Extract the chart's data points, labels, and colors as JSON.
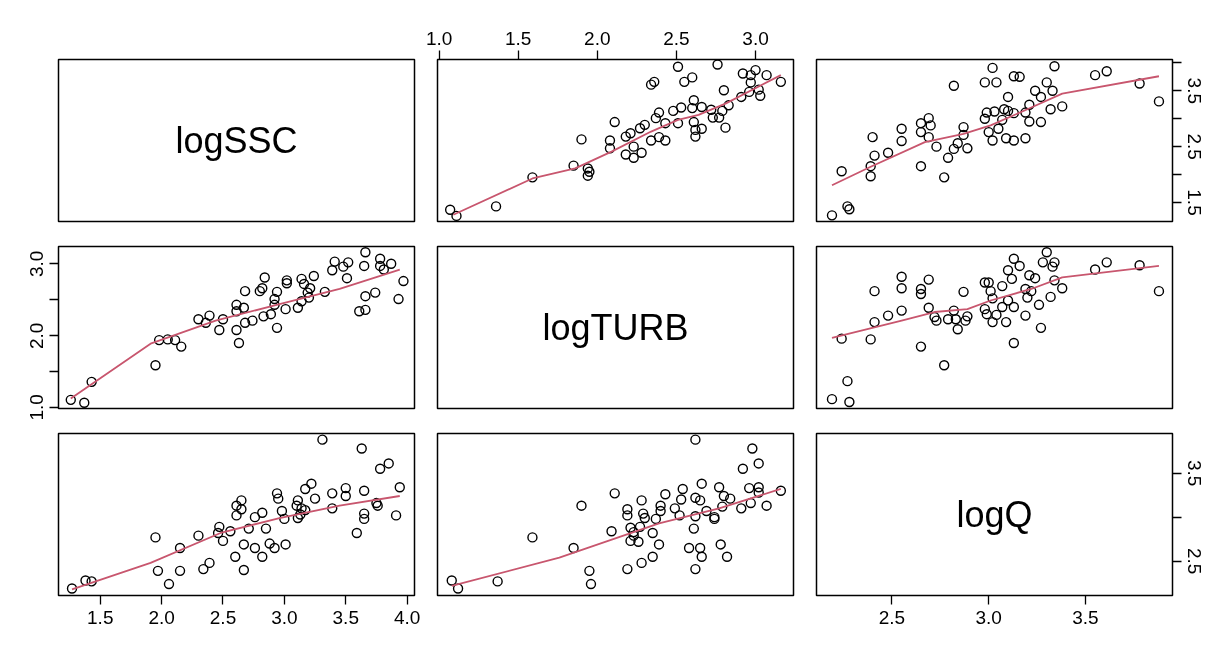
{
  "chart_data": [
    {
      "type": "other",
      "title": "logSSC"
    },
    {
      "type": "scatter",
      "xlim": [
        0.99,
        3.24
      ],
      "ylim": [
        1.16,
        4.06
      ],
      "tick_labels": "x",
      "xticks": [
        {
          "value": 1,
          "label": "1.0"
        },
        1.5,
        {
          "value": 2,
          "label": "2.0"
        },
        2.5,
        {
          "value": 3,
          "label": "3.0"
        }
      ],
      "series": [
        {
          "type": "scatter",
          "marker": "circle",
          "color": "#000000",
          "x": [
            1.07,
            1.11,
            1.36,
            1.59,
            1.85,
            1.9,
            1.94,
            1.95,
            1.94,
            2.08,
            2.08,
            2.11,
            2.18,
            2.18,
            2.21,
            2.23,
            2.23,
            2.27,
            2.28,
            2.3,
            2.34,
            2.34,
            2.36,
            2.37,
            2.39,
            2.39,
            2.43,
            2.43,
            2.48,
            2.51,
            2.51,
            2.53,
            2.55,
            2.6,
            2.61,
            2.6,
            2.61,
            2.62,
            2.62,
            2.66,
            2.66,
            2.72,
            2.73,
            2.76,
            2.77,
            2.79,
            2.8,
            2.81,
            2.83,
            2.91,
            2.92,
            2.97,
            2.97,
            3.0,
            3.02,
            3.03,
            3.07,
            3.16,
            2.96
          ],
          "values": [
            1.37,
            1.26,
            1.43,
            1.95,
            2.16,
            2.63,
            2.11,
            2.05,
            1.98,
            2.61,
            2.47,
            2.94,
            2.68,
            2.36,
            2.74,
            2.3,
            2.5,
            2.83,
            2.39,
            2.89,
            2.61,
            3.61,
            3.66,
            3.01,
            3.11,
            2.67,
            2.61,
            2.92,
            3.14,
            3.93,
            2.92,
            3.2,
            3.66,
            3.74,
            3.33,
            3.19,
            2.94,
            2.8,
            2.68,
            2.82,
            3.21,
            3.16,
            3.02,
            3.97,
            3.02,
            3.14,
            3.51,
            2.84,
            3.24,
            3.39,
            3.81,
            3.78,
            3.65,
            3.87,
            3.52,
            3.41,
            3.78,
            3.66,
            3.48
          ]
        },
        {
          "type": "line",
          "color": "#c8566e",
          "x": [
            1.09,
            1.59,
            1.86,
            2.09,
            2.34,
            2.51,
            2.64,
            2.81,
            3.16
          ],
          "values": [
            1.28,
            1.93,
            2.11,
            2.41,
            2.77,
            2.98,
            3.07,
            3.27,
            3.78
          ]
        }
      ]
    },
    {
      "type": "scatter",
      "xlim": [
        2.11,
        3.95
      ],
      "ylim": [
        1.16,
        4.06
      ],
      "tick_labels": "y",
      "yticks": [
        1.5,
        {
          "value": 2,
          "label": null
        },
        2.5,
        {
          "value": 3,
          "label": null
        },
        3.5,
        {
          "value": 4,
          "label": null
        }
      ],
      "series": [
        {
          "type": "scatter",
          "marker": "circle",
          "color": "#000000",
          "x": [
            2.19,
            2.27,
            2.28,
            2.24,
            2.39,
            2.39,
            2.4,
            2.41,
            2.48,
            2.55,
            2.55,
            2.65,
            2.65,
            2.65,
            2.69,
            2.69,
            2.7,
            2.73,
            2.77,
            2.79,
            2.82,
            2.82,
            2.84,
            2.87,
            2.87,
            2.89,
            2.98,
            2.98,
            2.99,
            3.0,
            3.02,
            3.02,
            3.03,
            3.04,
            3.05,
            3.07,
            3.08,
            3.09,
            3.1,
            3.1,
            3.13,
            3.13,
            3.13,
            3.16,
            3.19,
            3.19,
            3.21,
            3.21,
            3.24,
            3.27,
            3.27,
            3.3,
            3.32,
            3.33,
            3.34,
            3.38,
            3.55,
            3.61,
            3.78,
            3.88
          ],
          "values": [
            1.27,
            1.43,
            1.38,
            2.06,
            2.15,
            1.97,
            2.67,
            2.34,
            2.39,
            2.82,
            2.6,
            2.92,
            2.76,
            2.15,
            3.01,
            2.67,
            2.88,
            2.5,
            1.95,
            2.3,
            3.59,
            2.46,
            2.56,
            2.85,
            2.71,
            2.47,
            3.65,
            3.0,
            3.11,
            2.76,
            3.91,
            2.61,
            3.13,
            3.65,
            2.82,
            2.98,
            3.17,
            2.65,
            3.39,
            3.14,
            3.1,
            2.61,
            3.76,
            3.75,
            2.65,
            3.11,
            3.25,
            2.95,
            3.5,
            2.94,
            3.39,
            3.65,
            3.17,
            3.5,
            3.94,
            3.22,
            3.78,
            3.85,
            3.63,
            3.31
          ]
        },
        {
          "type": "line",
          "color": "#c8566e",
          "x": [
            2.19,
            2.39,
            2.67,
            2.87,
            3.01,
            3.22,
            3.38,
            3.88
          ],
          "values": [
            1.81,
            2.14,
            2.58,
            2.73,
            2.88,
            3.2,
            3.45,
            3.76
          ]
        }
      ]
    },
    {
      "type": "scatter",
      "xlim": [
        1.16,
        4.06
      ],
      "ylim": [
        0.99,
        3.24
      ],
      "tick_labels": "y",
      "yticks": [
        {
          "value": 1,
          "label": "1.0"
        },
        {
          "value": 1.5,
          "label": null
        },
        {
          "value": 2,
          "label": "2.0"
        },
        {
          "value": 2.5,
          "label": null
        },
        {
          "value": 3,
          "label": "3.0"
        }
      ],
      "series": [
        {
          "type": "scatter",
          "marker": "circle",
          "color": "#000000",
          "x": [
            1.37,
            1.26,
            1.43,
            1.95,
            2.16,
            2.63,
            2.11,
            2.05,
            1.98,
            2.61,
            2.47,
            2.94,
            2.68,
            2.36,
            2.74,
            2.3,
            2.5,
            2.83,
            2.39,
            2.89,
            2.61,
            3.61,
            3.66,
            3.01,
            3.11,
            2.67,
            2.61,
            2.92,
            3.14,
            3.93,
            2.92,
            3.2,
            3.66,
            3.74,
            3.33,
            3.19,
            2.94,
            2.8,
            2.68,
            2.82,
            3.21,
            3.16,
            3.02,
            3.97,
            3.02,
            3.14,
            3.51,
            2.84,
            3.24,
            3.39,
            3.81,
            3.78,
            3.65,
            3.87,
            3.52,
            3.41,
            3.78,
            3.66,
            3.48
          ],
          "values": [
            1.07,
            1.11,
            1.36,
            1.59,
            1.85,
            1.9,
            1.94,
            1.95,
            1.94,
            2.08,
            2.08,
            2.11,
            2.18,
            2.18,
            2.21,
            2.23,
            2.23,
            2.27,
            2.28,
            2.3,
            2.34,
            2.34,
            2.36,
            2.37,
            2.39,
            2.39,
            2.43,
            2.43,
            2.48,
            2.51,
            2.51,
            2.53,
            2.55,
            2.6,
            2.61,
            2.6,
            2.61,
            2.62,
            2.62,
            2.66,
            2.66,
            2.72,
            2.73,
            2.76,
            2.77,
            2.79,
            2.8,
            2.81,
            2.83,
            2.91,
            2.92,
            2.97,
            2.97,
            3.0,
            3.02,
            3.03,
            3.07,
            3.16,
            2.96
          ]
        },
        {
          "type": "line",
          "color": "#c8566e",
          "x": [
            1.26,
            1.91,
            2.44,
            2.96,
            3.45,
            3.94
          ],
          "values": [
            1.13,
            1.89,
            2.21,
            2.44,
            2.65,
            2.92
          ]
        }
      ]
    },
    {
      "type": "other",
      "title": "logTURB"
    },
    {
      "type": "scatter",
      "xlim": [
        2.11,
        3.95
      ],
      "ylim": [
        0.99,
        3.24
      ],
      "tick_labels": false,
      "series": [
        {
          "type": "scatter",
          "marker": "circle",
          "color": "#000000",
          "x": [
            2.19,
            2.28,
            2.27,
            2.24,
            2.39,
            2.41,
            2.41,
            2.48,
            2.55,
            2.55,
            2.55,
            2.65,
            2.65,
            2.65,
            2.69,
            2.69,
            2.73,
            2.72,
            2.77,
            2.79,
            2.83,
            2.82,
            2.84,
            2.87,
            2.88,
            2.89,
            2.98,
            3.0,
            2.98,
            2.99,
            3.01,
            3.02,
            3.02,
            3.04,
            3.07,
            3.07,
            3.09,
            3.1,
            3.1,
            3.12,
            3.13,
            3.13,
            3.13,
            3.16,
            3.19,
            3.19,
            3.21,
            3.2,
            3.22,
            3.24,
            3.26,
            3.27,
            3.28,
            3.3,
            3.32,
            3.33,
            3.34,
            3.34,
            3.38,
            3.55,
            3.61,
            3.78,
            3.88
          ],
          "values": [
            1.12,
            1.08,
            1.37,
            1.96,
            1.95,
            2.62,
            2.19,
            2.28,
            2.82,
            2.66,
            2.35,
            1.85,
            2.65,
            2.58,
            2.78,
            2.39,
            2.21,
            2.26,
            1.59,
            2.23,
            2.23,
            2.35,
            2.09,
            2.61,
            2.21,
            2.27,
            2.74,
            2.74,
            2.37,
            2.3,
            2.62,
            2.19,
            2.52,
            2.29,
            2.69,
            2.4,
            2.19,
            2.91,
            2.49,
            2.79,
            2.4,
            3.07,
            1.9,
            2.97,
            2.28,
            2.65,
            2.84,
            2.53,
            2.62,
            2.8,
            2.43,
            2.11,
            3.02,
            3.16,
            2.54,
            2.96,
            3.02,
            2.77,
            2.66,
            2.92,
            3.02,
            2.98,
            2.62
          ]
        },
        {
          "type": "line",
          "color": "#c8566e",
          "x": [
            2.19,
            2.55,
            2.72,
            2.89,
            3.01,
            3.22,
            3.38,
            3.88
          ],
          "values": [
            1.97,
            2.21,
            2.33,
            2.37,
            2.49,
            2.65,
            2.81,
            2.97
          ]
        }
      ]
    },
    {
      "type": "scatter",
      "xlim": [
        1.16,
        4.06
      ],
      "ylim": [
        2.11,
        3.95
      ],
      "tick_labels": "x",
      "xticks": [
        1.5,
        {
          "value": 2,
          "label": "2.0"
        },
        2.5,
        {
          "value": 3,
          "label": "3.0"
        },
        3.5,
        {
          "value": 4,
          "label": "4.0"
        }
      ],
      "series": [
        {
          "type": "scatter",
          "marker": "circle",
          "color": "#000000",
          "x": [
            1.27,
            1.43,
            1.38,
            2.06,
            2.15,
            1.97,
            2.67,
            2.34,
            2.39,
            2.82,
            2.6,
            2.92,
            2.76,
            2.15,
            3.01,
            2.67,
            2.88,
            2.5,
            1.95,
            2.3,
            3.59,
            2.46,
            2.56,
            2.85,
            2.71,
            2.47,
            3.65,
            3.0,
            3.11,
            2.76,
            3.91,
            2.61,
            3.13,
            3.65,
            2.82,
            2.98,
            3.17,
            2.65,
            3.39,
            3.14,
            3.1,
            2.61,
            3.76,
            3.75,
            2.65,
            3.11,
            3.25,
            2.95,
            3.5,
            2.94,
            3.39,
            3.65,
            3.17,
            3.5,
            3.94,
            3.22,
            3.78,
            3.85,
            3.63,
            3.31
          ],
          "values": [
            2.19,
            2.27,
            2.28,
            2.24,
            2.39,
            2.39,
            2.4,
            2.41,
            2.48,
            2.55,
            2.55,
            2.65,
            2.65,
            2.65,
            2.69,
            2.69,
            2.7,
            2.73,
            2.77,
            2.79,
            2.82,
            2.82,
            2.84,
            2.87,
            2.87,
            2.89,
            2.98,
            2.98,
            2.99,
            3.0,
            3.02,
            3.02,
            3.03,
            3.04,
            3.05,
            3.07,
            3.08,
            3.09,
            3.1,
            3.1,
            3.13,
            3.13,
            3.13,
            3.16,
            3.19,
            3.19,
            3.21,
            3.21,
            3.24,
            3.27,
            3.27,
            3.3,
            3.32,
            3.33,
            3.34,
            3.38,
            3.55,
            3.61,
            3.78,
            3.88
          ]
        },
        {
          "type": "line",
          "color": "#c8566e",
          "x": [
            1.27,
            1.91,
            2.48,
            2.96,
            3.45,
            3.94
          ],
          "values": [
            2.18,
            2.48,
            2.82,
            2.99,
            3.13,
            3.24
          ]
        }
      ]
    },
    {
      "type": "scatter",
      "xlim": [
        0.99,
        3.24
      ],
      "ylim": [
        2.11,
        3.95
      ],
      "tick_labels": false,
      "series": [
        {
          "type": "scatter",
          "marker": "circle",
          "color": "#000000",
          "x": [
            1.12,
            1.08,
            1.37,
            1.96,
            1.95,
            2.62,
            2.19,
            2.28,
            2.82,
            2.66,
            2.35,
            1.85,
            2.65,
            2.58,
            2.78,
            2.39,
            2.21,
            2.26,
            1.59,
            2.23,
            2.23,
            2.35,
            2.09,
            2.61,
            2.21,
            2.27,
            2.74,
            2.74,
            2.37,
            2.3,
            2.62,
            2.19,
            2.52,
            2.29,
            2.69,
            2.4,
            2.19,
            2.91,
            2.49,
            2.79,
            2.4,
            3.07,
            1.9,
            2.97,
            2.28,
            2.65,
            2.84,
            2.53,
            2.62,
            2.8,
            2.43,
            2.11,
            3.02,
            3.16,
            2.54,
            2.96,
            3.02,
            2.77,
            2.66,
            2.92,
            3.02,
            2.98,
            2.62
          ],
          "values": [
            2.19,
            2.28,
            2.27,
            2.24,
            2.39,
            2.41,
            2.41,
            2.48,
            2.55,
            2.55,
            2.55,
            2.65,
            2.65,
            2.65,
            2.69,
            2.69,
            2.73,
            2.72,
            2.77,
            2.79,
            2.83,
            2.82,
            2.84,
            2.87,
            2.88,
            2.89,
            2.98,
            3.0,
            2.98,
            2.99,
            3.01,
            3.02,
            3.02,
            3.04,
            3.07,
            3.07,
            3.09,
            3.1,
            3.1,
            3.12,
            3.13,
            3.13,
            3.13,
            3.16,
            3.19,
            3.19,
            3.21,
            3.2,
            3.22,
            3.24,
            3.26,
            3.27,
            3.28,
            3.3,
            3.32,
            3.33,
            3.34,
            3.34,
            3.38,
            3.55,
            3.61,
            3.78,
            3.88
          ]
        },
        {
          "type": "line",
          "color": "#c8566e",
          "x": [
            1.08,
            1.76,
            2.39,
            2.77,
            3.16
          ],
          "values": [
            2.22,
            2.54,
            2.93,
            3.1,
            3.32
          ]
        }
      ]
    },
    {
      "type": "scatter",
      "title": "logQ",
      "xlim": [
        2.11,
        3.95
      ],
      "ylim": [
        2.11,
        3.95
      ],
      "xticks": [
        2.5,
        {
          "value": 3,
          "label": "3.0"
        },
        3.5
      ],
      "yticks": [
        2.5,
        {
          "value": 3,
          "label": null
        },
        3.5
      ]
    }
  ]
}
